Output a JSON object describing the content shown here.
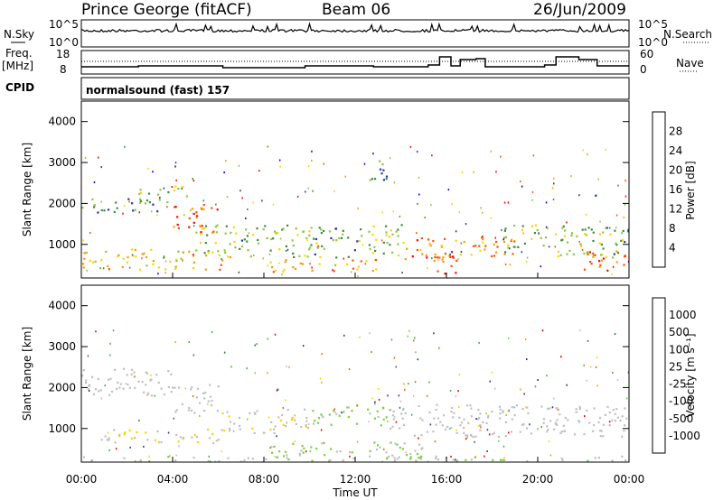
{
  "header": {
    "station": "Prince George (fitACF)",
    "beam": "Beam 06",
    "date": "26/Jun/2009"
  },
  "nsky_panel": {
    "left_label": "N.Sky",
    "left_ticks": [
      "10^5",
      "10^0"
    ],
    "right_label": "N.Search",
    "right_ticks": [
      "10^5",
      "10^0"
    ]
  },
  "freq_panel": {
    "left_label_1": "Freq.",
    "left_label_2": "[MHz]",
    "left_ticks": [
      "18",
      "8"
    ],
    "right_label": "Nave",
    "right_ticks": [
      "60",
      "0"
    ]
  },
  "cpid": {
    "label": "CPID",
    "text": "normalsound (fast) 157"
  },
  "power_colorbar": {
    "title": "Power [dB]",
    "ticks": [
      "28",
      "24",
      "20",
      "16",
      "12",
      "8",
      "4"
    ],
    "colors": [
      "#ff0000",
      "#ff5000",
      "#ff9a00",
      "#ffd200",
      "#8ec63f",
      "#3c8c3c",
      "#1e3ca0",
      "#0000ff"
    ]
  },
  "velocity_colorbar": {
    "title": "Velocity [m s⁻¹]",
    "ticks": [
      "1000",
      "500",
      "100",
      "25",
      "-25",
      "-100",
      "-500",
      "-1000"
    ],
    "colors": [
      "#1e32b4",
      "#2d7a4a",
      "#3cb43c",
      "#78d23c",
      "#c0c0c0",
      "#ffd200",
      "#ffa000",
      "#ff5a00",
      "#e10000"
    ]
  },
  "x_axis": {
    "label": "Time UT",
    "ticks": [
      "00:00",
      "04:00",
      "08:00",
      "12:00",
      "16:00",
      "20:00",
      "00:00"
    ]
  },
  "chart_data": [
    {
      "type": "heatmap",
      "name": "power",
      "ylabel": "Slant Range [km]",
      "xlabel": "",
      "x_range_hours": [
        0,
        24
      ],
      "ylim": [
        180,
        4500
      ],
      "y_ticks": [
        "4000",
        "3000",
        "2000",
        "1000"
      ],
      "clim": [
        0,
        30
      ],
      "blobs": [
        {
          "t0": 0.0,
          "t1": 6.5,
          "r0": 400,
          "r1": 900,
          "v": 18
        },
        {
          "t0": 0.0,
          "t1": 3.5,
          "r0": 1800,
          "r1": 2150,
          "v": 10
        },
        {
          "t0": 2.5,
          "t1": 4.8,
          "r0": 2050,
          "r1": 2450,
          "v": 14
        },
        {
          "t0": 4.0,
          "t1": 6.0,
          "r0": 1300,
          "r1": 2000,
          "v": 26
        },
        {
          "t0": 5.0,
          "t1": 7.0,
          "r0": 800,
          "r1": 1500,
          "v": 13
        },
        {
          "t0": 7.0,
          "t1": 14.0,
          "r0": 700,
          "r1": 1500,
          "v": 12
        },
        {
          "t0": 8.0,
          "t1": 13.0,
          "r0": 350,
          "r1": 650,
          "v": 20
        },
        {
          "t0": 12.5,
          "t1": 13.5,
          "r0": 2500,
          "r1": 3100,
          "v": 9
        },
        {
          "t0": 14.0,
          "t1": 19.0,
          "r0": 600,
          "r1": 1200,
          "v": 22
        },
        {
          "t0": 15.5,
          "t1": 16.5,
          "r0": 250,
          "r1": 800,
          "v": 26
        },
        {
          "t0": 18.5,
          "t1": 24.0,
          "r0": 700,
          "r1": 1500,
          "v": 12
        },
        {
          "t0": 22.0,
          "t1": 24.0,
          "r0": 300,
          "r1": 900,
          "v": 24
        }
      ]
    },
    {
      "type": "heatmap",
      "name": "velocity",
      "ylabel": "Slant Range [km]",
      "xlabel": "Time UT",
      "x_range_hours": [
        0,
        24
      ],
      "ylim": [
        180,
        4500
      ],
      "y_ticks": [
        "4000",
        "3000",
        "2000",
        "1000"
      ],
      "clim": [
        -1000,
        1000
      ],
      "blobs": [
        {
          "t0": 0.0,
          "t1": 4.0,
          "r0": 1800,
          "r1": 2500,
          "v": 0
        },
        {
          "t0": 4.0,
          "t1": 6.0,
          "r0": 1400,
          "r1": 2100,
          "v": 0
        },
        {
          "t0": 0.5,
          "t1": 6.0,
          "r0": 650,
          "r1": 1000,
          "v": -100
        },
        {
          "t0": 6.0,
          "t1": 10.0,
          "r0": 900,
          "r1": 1500,
          "v": -60
        },
        {
          "t0": 10.0,
          "t1": 13.5,
          "r0": 1100,
          "r1": 1600,
          "v": 150
        },
        {
          "t0": 13.5,
          "t1": 24.0,
          "r0": 800,
          "r1": 1600,
          "v": 0
        },
        {
          "t0": 8.0,
          "t1": 15.0,
          "r0": 300,
          "r1": 700,
          "v": 120
        },
        {
          "t0": 0.0,
          "t1": 24.0,
          "r0": 180,
          "r1": 350,
          "v": 80
        }
      ]
    }
  ]
}
